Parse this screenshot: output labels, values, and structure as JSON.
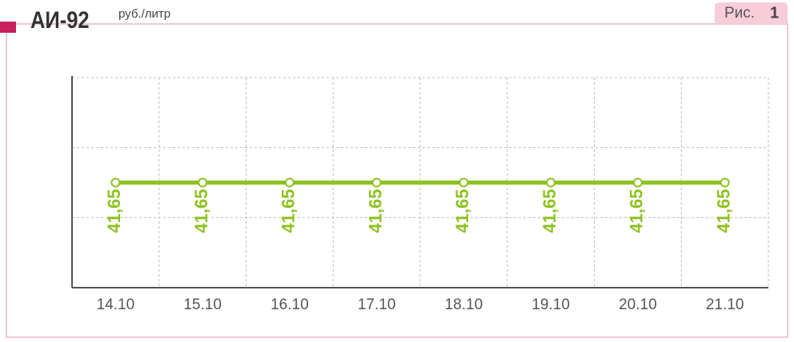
{
  "chart_data": {
    "type": "line",
    "title": "АИ-92",
    "subtitle": "руб./литр",
    "figure_label": "Рис.",
    "figure_number": "1",
    "categories": [
      "14.10",
      "15.10",
      "16.10",
      "17.10",
      "18.10",
      "19.10",
      "20.10",
      "21.10"
    ],
    "values": [
      41.65,
      41.65,
      41.65,
      41.65,
      41.65,
      41.65,
      41.65,
      41.65
    ],
    "value_labels": [
      "41,65",
      "41,65",
      "41,65",
      "41,65",
      "41,65",
      "41,65",
      "41,65",
      "41,65"
    ],
    "color": "#8dc21f",
    "ylim": [
      41.5,
      41.8
    ],
    "yticks": [
      41.5,
      41.6,
      41.7,
      41.8
    ],
    "grid": true
  }
}
